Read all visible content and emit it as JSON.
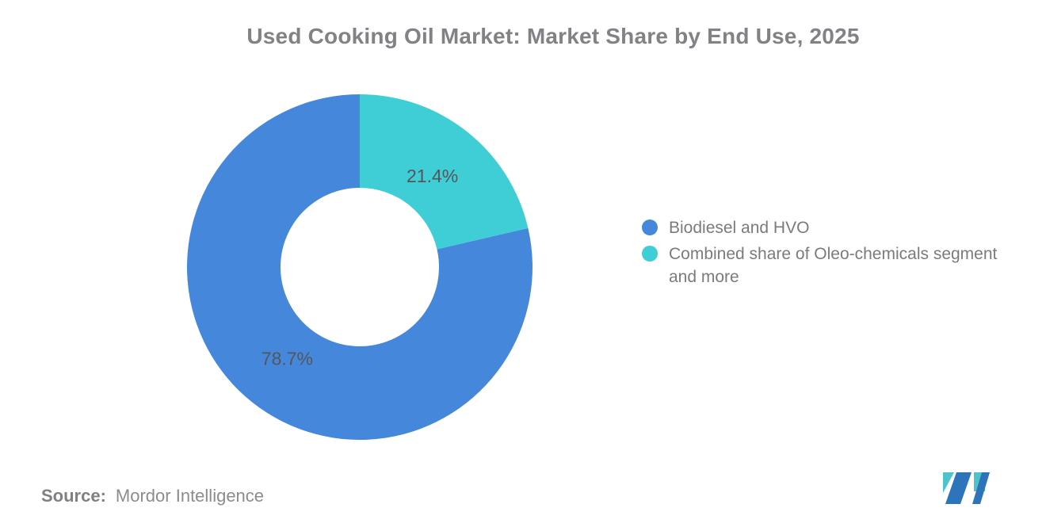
{
  "title": "Used Cooking Oil Market: Market Share by End Use, 2025",
  "chart_data": {
    "type": "pie",
    "subtype": "donut",
    "title": "Used Cooking Oil Market: Market Share by End Use, 2025",
    "categories": [
      "Biodiesel and HVO",
      "Combined share of Oleo-chemicals segment and more"
    ],
    "values": [
      78.7,
      21.4
    ],
    "labels": [
      "78.7%",
      "21.4%"
    ],
    "colors": [
      "#4587DB",
      "#3FCED5"
    ],
    "start_angle_deg": 0,
    "direction": "counterclockwise-from-top",
    "inner_radius_ratio": 0.46,
    "legend_position": "right",
    "grid": false
  },
  "legend": {
    "items": [
      {
        "label": "Biodiesel and HVO",
        "color": "#4587DB"
      },
      {
        "label": "Combined share of Oleo-chemicals segment and more",
        "color": "#3FCED5"
      }
    ]
  },
  "source": {
    "prefix": "Source:",
    "text": "Mordor Intelligence"
  },
  "logo": {
    "name": "mordor-intelligence-logo",
    "blue": "#2E74BB",
    "teal": "#4EC3CC"
  }
}
